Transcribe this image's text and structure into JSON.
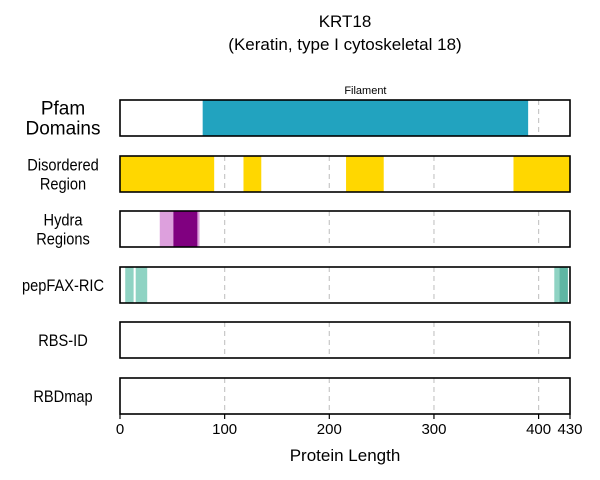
{
  "chart_data": {
    "type": "bar",
    "title": "KRT18",
    "subtitle": "(Keratin, type I cytoskeletal 18)",
    "xlabel": "Protein Length",
    "xlim": [
      0,
      430
    ],
    "x_ticks": [
      0,
      100,
      200,
      300,
      400,
      430
    ],
    "grid_x": [
      100,
      200,
      300,
      400
    ],
    "grid": "vertical dashed at 100, 200, 300, 400",
    "tracks": [
      {
        "label": "Pfam\nDomains",
        "segments": [
          {
            "start": 79,
            "end": 390,
            "color": "#22a3bf",
            "label": "Filament"
          }
        ]
      },
      {
        "label": "Disordered\nRegion",
        "segments": [
          {
            "start": 0,
            "end": 90,
            "color": "#ffd700"
          },
          {
            "start": 118,
            "end": 135,
            "color": "#ffd700"
          },
          {
            "start": 216,
            "end": 252,
            "color": "#ffd700"
          },
          {
            "start": 376,
            "end": 430,
            "color": "#ffd700"
          }
        ]
      },
      {
        "label": "Hydra\nRegions",
        "segments": [
          {
            "start": 38,
            "end": 51,
            "color": "#dda0dd"
          },
          {
            "start": 51,
            "end": 74,
            "color": "#800080"
          },
          {
            "start": 74,
            "end": 76,
            "color": "#dda0dd"
          }
        ]
      },
      {
        "label": "pepFAX-RIC",
        "segments": [
          {
            "start": 5,
            "end": 13,
            "color": "#8fd3c3"
          },
          {
            "start": 15,
            "end": 26,
            "color": "#8fd3c3"
          },
          {
            "start": 415,
            "end": 420,
            "color": "#8fd3c3"
          },
          {
            "start": 420,
            "end": 428,
            "color": "#5fb6a3"
          }
        ]
      },
      {
        "label": "RBS-ID",
        "segments": []
      },
      {
        "label": "RBDmap",
        "segments": []
      }
    ]
  }
}
